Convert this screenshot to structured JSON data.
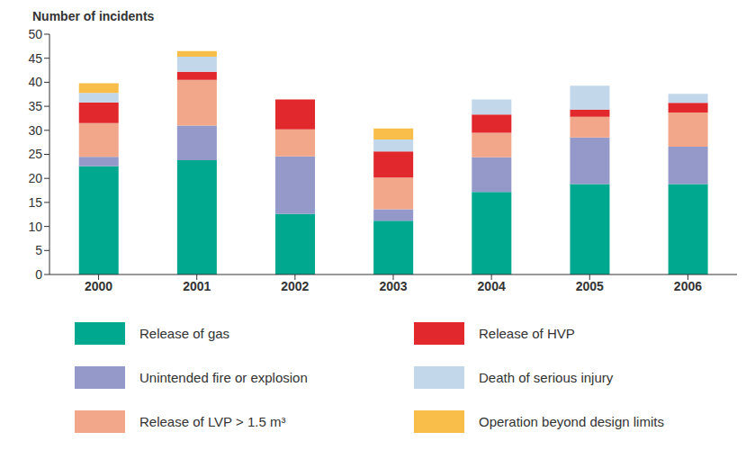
{
  "chart_data": {
    "type": "bar",
    "y_label": "Number of incidents",
    "categories": [
      "2000",
      "2001",
      "2002",
      "2003",
      "2004",
      "2005",
      "2006"
    ],
    "series": [
      {
        "name": "Release of gas",
        "color": "#00a88f",
        "values": [
          22.5,
          23.8,
          12.6,
          11.2,
          17.2,
          18.8,
          18.8
        ]
      },
      {
        "name": "Unintended fire or explosion",
        "color": "#9499c9",
        "values": [
          2,
          7.2,
          12,
          2.4,
          7.2,
          9.7,
          7.8
        ]
      },
      {
        "name": "Release of LVP > 1.5 m³",
        "color": "#f2a68a",
        "values": [
          7,
          9.5,
          5.6,
          6.6,
          5.1,
          4.3,
          7.1
        ]
      },
      {
        "name": "Release of HVP",
        "color": "#e0282d",
        "values": [
          4.3,
          1.7,
          6.2,
          5.4,
          3.8,
          1.5,
          2
        ]
      },
      {
        "name": "Death of serious injury",
        "color": "#c3d7ea",
        "values": [
          2,
          3.1,
          0,
          2.5,
          3.1,
          5,
          1.9
        ]
      },
      {
        "name": "Operation beyond design limits",
        "color": "#f9be4a",
        "values": [
          2,
          1.2,
          0,
          2.3,
          0,
          0,
          0
        ]
      }
    ],
    "ylim": [
      0,
      50
    ],
    "yticks": [
      0,
      5,
      10,
      15,
      20,
      25,
      30,
      35,
      40,
      45,
      50
    ],
    "stacked": true,
    "grid": false,
    "legend": "bottom"
  }
}
